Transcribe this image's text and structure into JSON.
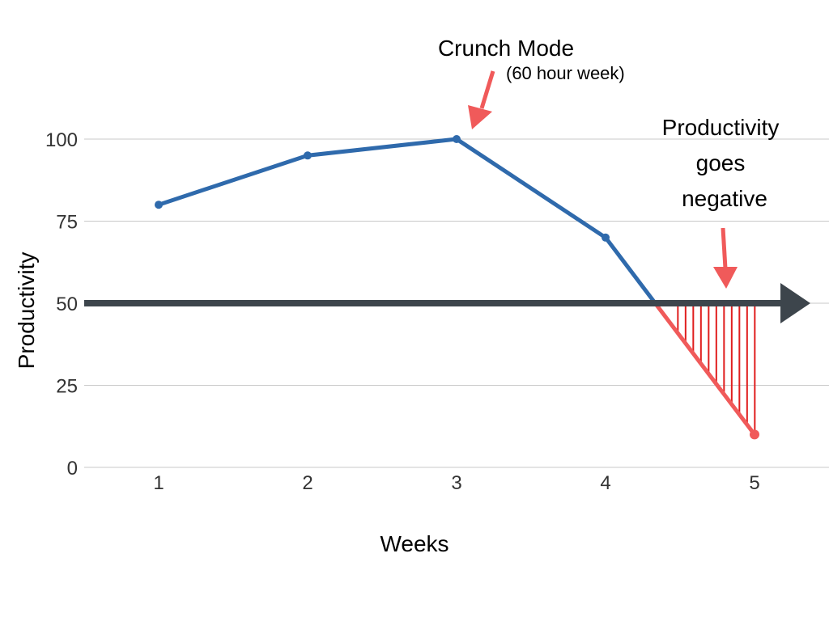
{
  "chart_data": {
    "type": "line",
    "title": "",
    "xlabel": "Weeks",
    "ylabel": "Productivity",
    "x": [
      1,
      2,
      3,
      4,
      5
    ],
    "xticks": [
      "1",
      "2",
      "3",
      "4",
      "5"
    ],
    "yticks": [
      "0",
      "25",
      "50",
      "75",
      "100"
    ],
    "xlim": [
      0.5,
      5.5
    ],
    "ylim": [
      0,
      100
    ],
    "grid": true,
    "series": [
      {
        "values": [
          80,
          95,
          100,
          70,
          10
        ],
        "color": "#2f6aac"
      }
    ],
    "negative_segment_color": "#f05a5a",
    "baseline": {
      "value": 50,
      "color": "#3d454c"
    },
    "annotations": [
      {
        "text": "Crunch Mode",
        "subtext": "(60 hour week)",
        "target_x": 3,
        "target_y": 100,
        "arrow_color": "#f05a5a"
      },
      {
        "text_lines": [
          "Productivity",
          "goes",
          "negative"
        ],
        "target_x": 4.8,
        "target_y": 50,
        "arrow_color": "#f05a5a"
      }
    ]
  }
}
